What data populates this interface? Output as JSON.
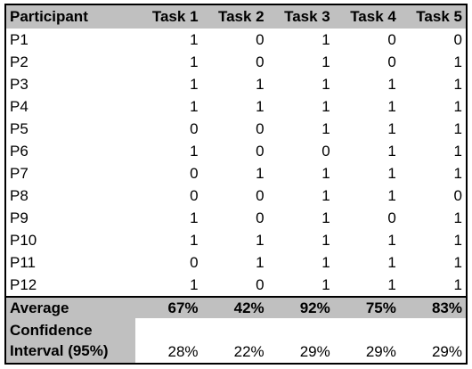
{
  "table": {
    "columns": [
      "Participant",
      "Task 1",
      "Task 2",
      "Task 3",
      "Task 4",
      "Task 5"
    ],
    "rows": [
      {
        "participant": "P1",
        "values": [
          "1",
          "0",
          "1",
          "0",
          "0"
        ]
      },
      {
        "participant": "P2",
        "values": [
          "1",
          "0",
          "1",
          "0",
          "1"
        ]
      },
      {
        "participant": "P3",
        "values": [
          "1",
          "1",
          "1",
          "1",
          "1"
        ]
      },
      {
        "participant": "P4",
        "values": [
          "1",
          "1",
          "1",
          "1",
          "1"
        ]
      },
      {
        "participant": "P5",
        "values": [
          "0",
          "0",
          "1",
          "1",
          "1"
        ]
      },
      {
        "participant": "P6",
        "values": [
          "1",
          "0",
          "0",
          "1",
          "1"
        ]
      },
      {
        "participant": "P7",
        "values": [
          "0",
          "1",
          "1",
          "1",
          "1"
        ]
      },
      {
        "participant": "P8",
        "values": [
          "0",
          "0",
          "1",
          "1",
          "0"
        ]
      },
      {
        "participant": "P9",
        "values": [
          "1",
          "0",
          "1",
          "0",
          "1"
        ]
      },
      {
        "participant": "P10",
        "values": [
          "1",
          "1",
          "1",
          "1",
          "1"
        ]
      },
      {
        "participant": "P11",
        "values": [
          "0",
          "1",
          "1",
          "1",
          "1"
        ]
      },
      {
        "participant": "P12",
        "values": [
          "1",
          "0",
          "1",
          "1",
          "1"
        ]
      }
    ],
    "average": {
      "label": "Average",
      "values": [
        "67%",
        "42%",
        "92%",
        "75%",
        "83%"
      ]
    },
    "confidence": {
      "label": "Confidence Interval (95%)",
      "values": [
        "28%",
        "22%",
        "29%",
        "29%",
        "29%"
      ]
    }
  },
  "colors": {
    "header_bg": "#c0c0c0",
    "border": "#000000"
  }
}
